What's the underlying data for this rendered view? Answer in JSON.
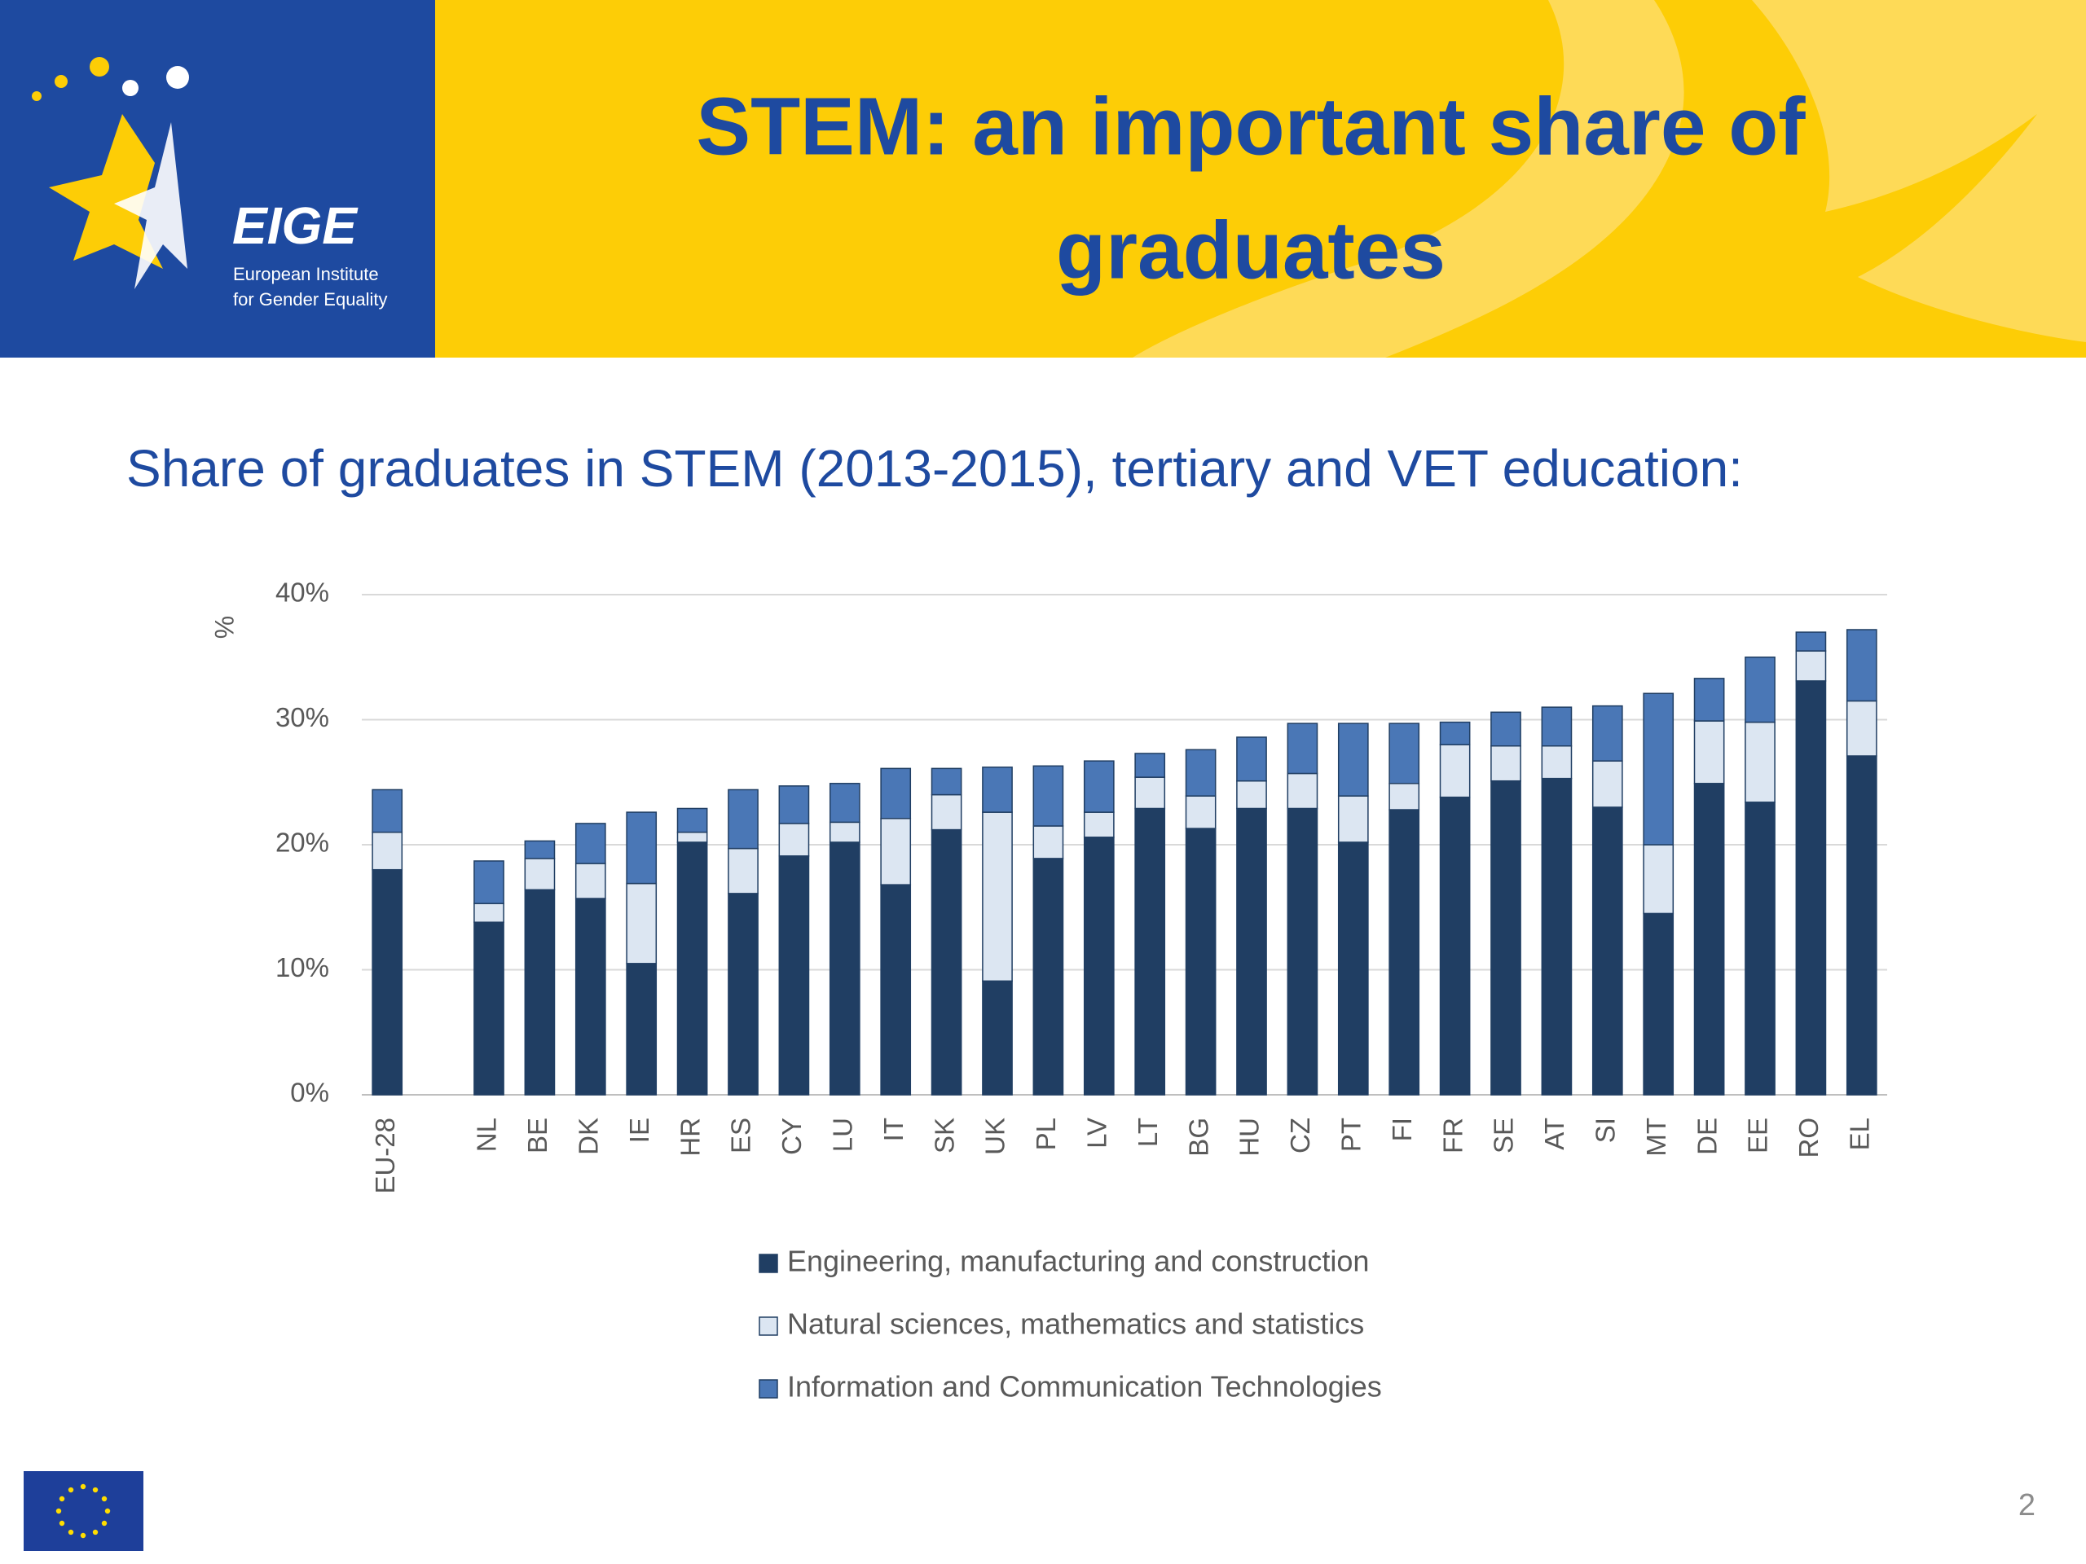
{
  "header": {
    "title_lines": [
      "STEM: an important share of",
      "graduates"
    ],
    "logo_name": "EIGE",
    "logo_lines": [
      "European Institute",
      "for Gender Equality"
    ]
  },
  "chart_data": {
    "type": "stacked_bar",
    "title": "Share of graduates in STEM (2013-2015), tertiary and VET education:",
    "y_label": "%",
    "categories": [
      "EU-28",
      null,
      "NL",
      "BE",
      "DK",
      "IE",
      "HR",
      "ES",
      "CY",
      "LU",
      "IT",
      "SK",
      "UK",
      "PL",
      "LV",
      "LT",
      "BG",
      "HU",
      "CZ",
      "PT",
      "FI",
      "FR",
      "SE",
      "AT",
      "SI",
      "MT",
      "DE",
      "EE",
      "RO",
      "EL"
    ],
    "series": [
      {
        "name": "Engineering, manufacturing and construction",
        "color": "#203e63",
        "values": [
          18.0,
          null,
          13.8,
          16.4,
          15.7,
          10.5,
          20.2,
          16.1,
          19.1,
          20.2,
          16.8,
          21.2,
          9.1,
          18.9,
          20.6,
          22.9,
          21.3,
          22.9,
          22.9,
          20.2,
          22.8,
          23.8,
          25.1,
          25.3,
          23.0,
          14.5,
          24.9,
          23.4,
          33.1,
          27.1
        ]
      },
      {
        "name": "Natural sciences, mathematics and statistics",
        "color": "#dce6f2",
        "values": [
          3.0,
          null,
          1.5,
          2.5,
          2.8,
          6.4,
          0.8,
          3.6,
          2.6,
          1.6,
          5.3,
          2.8,
          13.5,
          2.6,
          2.0,
          2.5,
          2.6,
          2.2,
          2.8,
          3.7,
          2.1,
          4.2,
          2.8,
          2.6,
          3.7,
          5.5,
          5.0,
          6.4,
          2.4,
          4.4
        ]
      },
      {
        "name": "Information and Communication Technologies",
        "color": "#4a77b6",
        "values": [
          3.4,
          null,
          3.4,
          1.4,
          3.2,
          5.7,
          1.9,
          4.7,
          3.0,
          3.1,
          4.0,
          2.1,
          3.6,
          4.8,
          4.1,
          1.9,
          3.7,
          3.5,
          4.0,
          5.8,
          4.8,
          1.8,
          2.7,
          3.1,
          4.4,
          12.1,
          3.4,
          5.2,
          1.5,
          5.7
        ]
      }
    ],
    "ylim": [
      0,
      40
    ],
    "yticks": [
      {
        "value": 0,
        "label": "0%"
      },
      {
        "value": 10,
        "label": "10%"
      },
      {
        "value": 20,
        "label": "20%"
      },
      {
        "value": 30,
        "label": "30%"
      },
      {
        "value": 40,
        "label": "40%"
      }
    ],
    "grid": true,
    "legend": "bottom"
  },
  "page_number": "2"
}
